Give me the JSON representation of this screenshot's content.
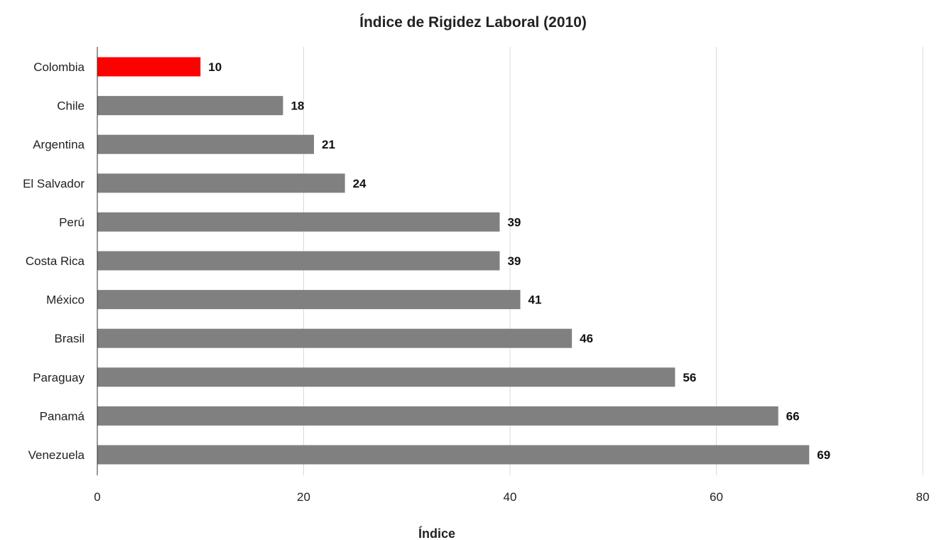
{
  "chart_data": {
    "type": "bar",
    "orientation": "horizontal",
    "title": "Índice de Rigidez Laboral (2010)",
    "xlabel": "Índice",
    "ylabel": "",
    "xlim": [
      0,
      80
    ],
    "ticks": [
      0,
      20,
      40,
      60,
      80
    ],
    "grid": true,
    "legend": "none",
    "categories": [
      "Colombia",
      "Chile",
      "Argentina",
      "El Salvador",
      "Perú",
      "Costa Rica",
      "México",
      "Brasil",
      "Paraguay",
      "Panamá",
      "Venezuela"
    ],
    "values": [
      10,
      18,
      21,
      24,
      39,
      39,
      41,
      46,
      56,
      66,
      69
    ],
    "highlight_category": "Colombia",
    "colors": {
      "highlight": "#ff0000",
      "default": "#808080",
      "grid": "#d9d9d9",
      "axis": "#333333"
    }
  }
}
